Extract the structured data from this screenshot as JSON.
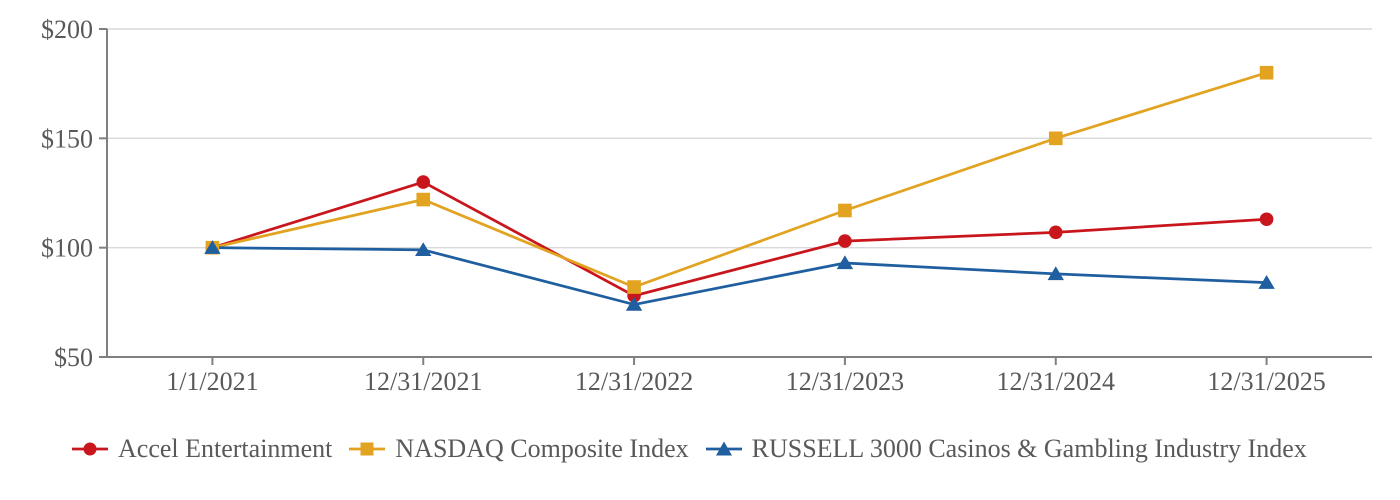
{
  "chart_data": {
    "type": "line",
    "title": "",
    "xlabel": "",
    "ylabel": "",
    "grid": "horizontal",
    "legend_position": "bottom",
    "x_categories": [
      "1/1/2021",
      "12/31/2021",
      "12/31/2022",
      "12/31/2023",
      "12/31/2024",
      "12/31/2025"
    ],
    "y_tick_labels": [
      "$200",
      "$150",
      "$100",
      "$50"
    ],
    "y_tick_values": [
      200,
      150,
      100,
      50
    ],
    "ylim": [
      50,
      200
    ],
    "series": [
      {
        "name": "Accel Entertainment",
        "marker": "circle",
        "color": "#C9161D",
        "values": [
          100,
          130,
          78,
          103,
          107,
          113
        ]
      },
      {
        "name": "NASDAQ Composite Index",
        "marker": "square",
        "color": "#E2A321",
        "values": [
          100,
          122,
          82,
          117,
          150,
          180
        ]
      },
      {
        "name": "RUSSELL 3000 Casinos & Gambling Industry Index",
        "marker": "triangle",
        "color": "#1F5FA0",
        "values": [
          100,
          99,
          74,
          93,
          88,
          84
        ]
      }
    ],
    "colors": {
      "axis": "#808080",
      "gridline": "#D9D9D9",
      "text": "#595959",
      "background": "#FFFFFF"
    }
  }
}
